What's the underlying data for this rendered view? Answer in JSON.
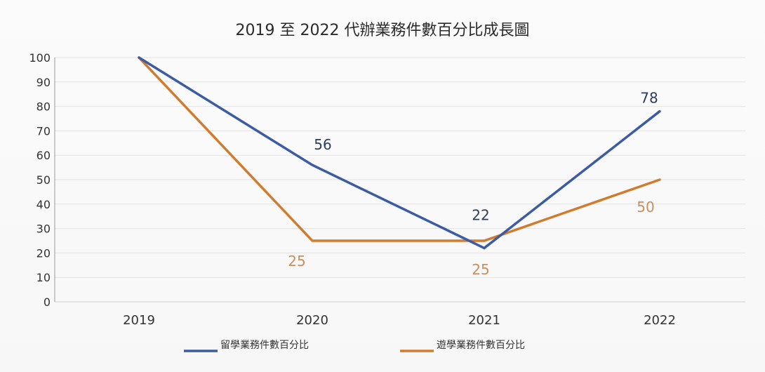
{
  "chart_data": {
    "type": "line",
    "title": "2019 至 2022 代辦業務件數百分比成長圖",
    "categories": [
      "2019",
      "2020",
      "2021",
      "2022"
    ],
    "yticks": [
      "100",
      "90",
      "80",
      "70",
      "60",
      "50",
      "40",
      "30",
      "20",
      "10",
      "0"
    ],
    "ylim": [
      0,
      100
    ],
    "grid": true,
    "legend_position": "bottom",
    "series": [
      {
        "name": "留學業務件數百分比",
        "color": "#3b5ba5",
        "values": [
          100,
          56,
          22,
          78
        ],
        "labels": [
          "",
          "56",
          "22",
          "78"
        ]
      },
      {
        "name": "遊學業務件數百分比",
        "color": "#d07c2e",
        "values": [
          100,
          25,
          25,
          50
        ],
        "labels": [
          "",
          "25",
          "25",
          "50"
        ]
      }
    ]
  }
}
